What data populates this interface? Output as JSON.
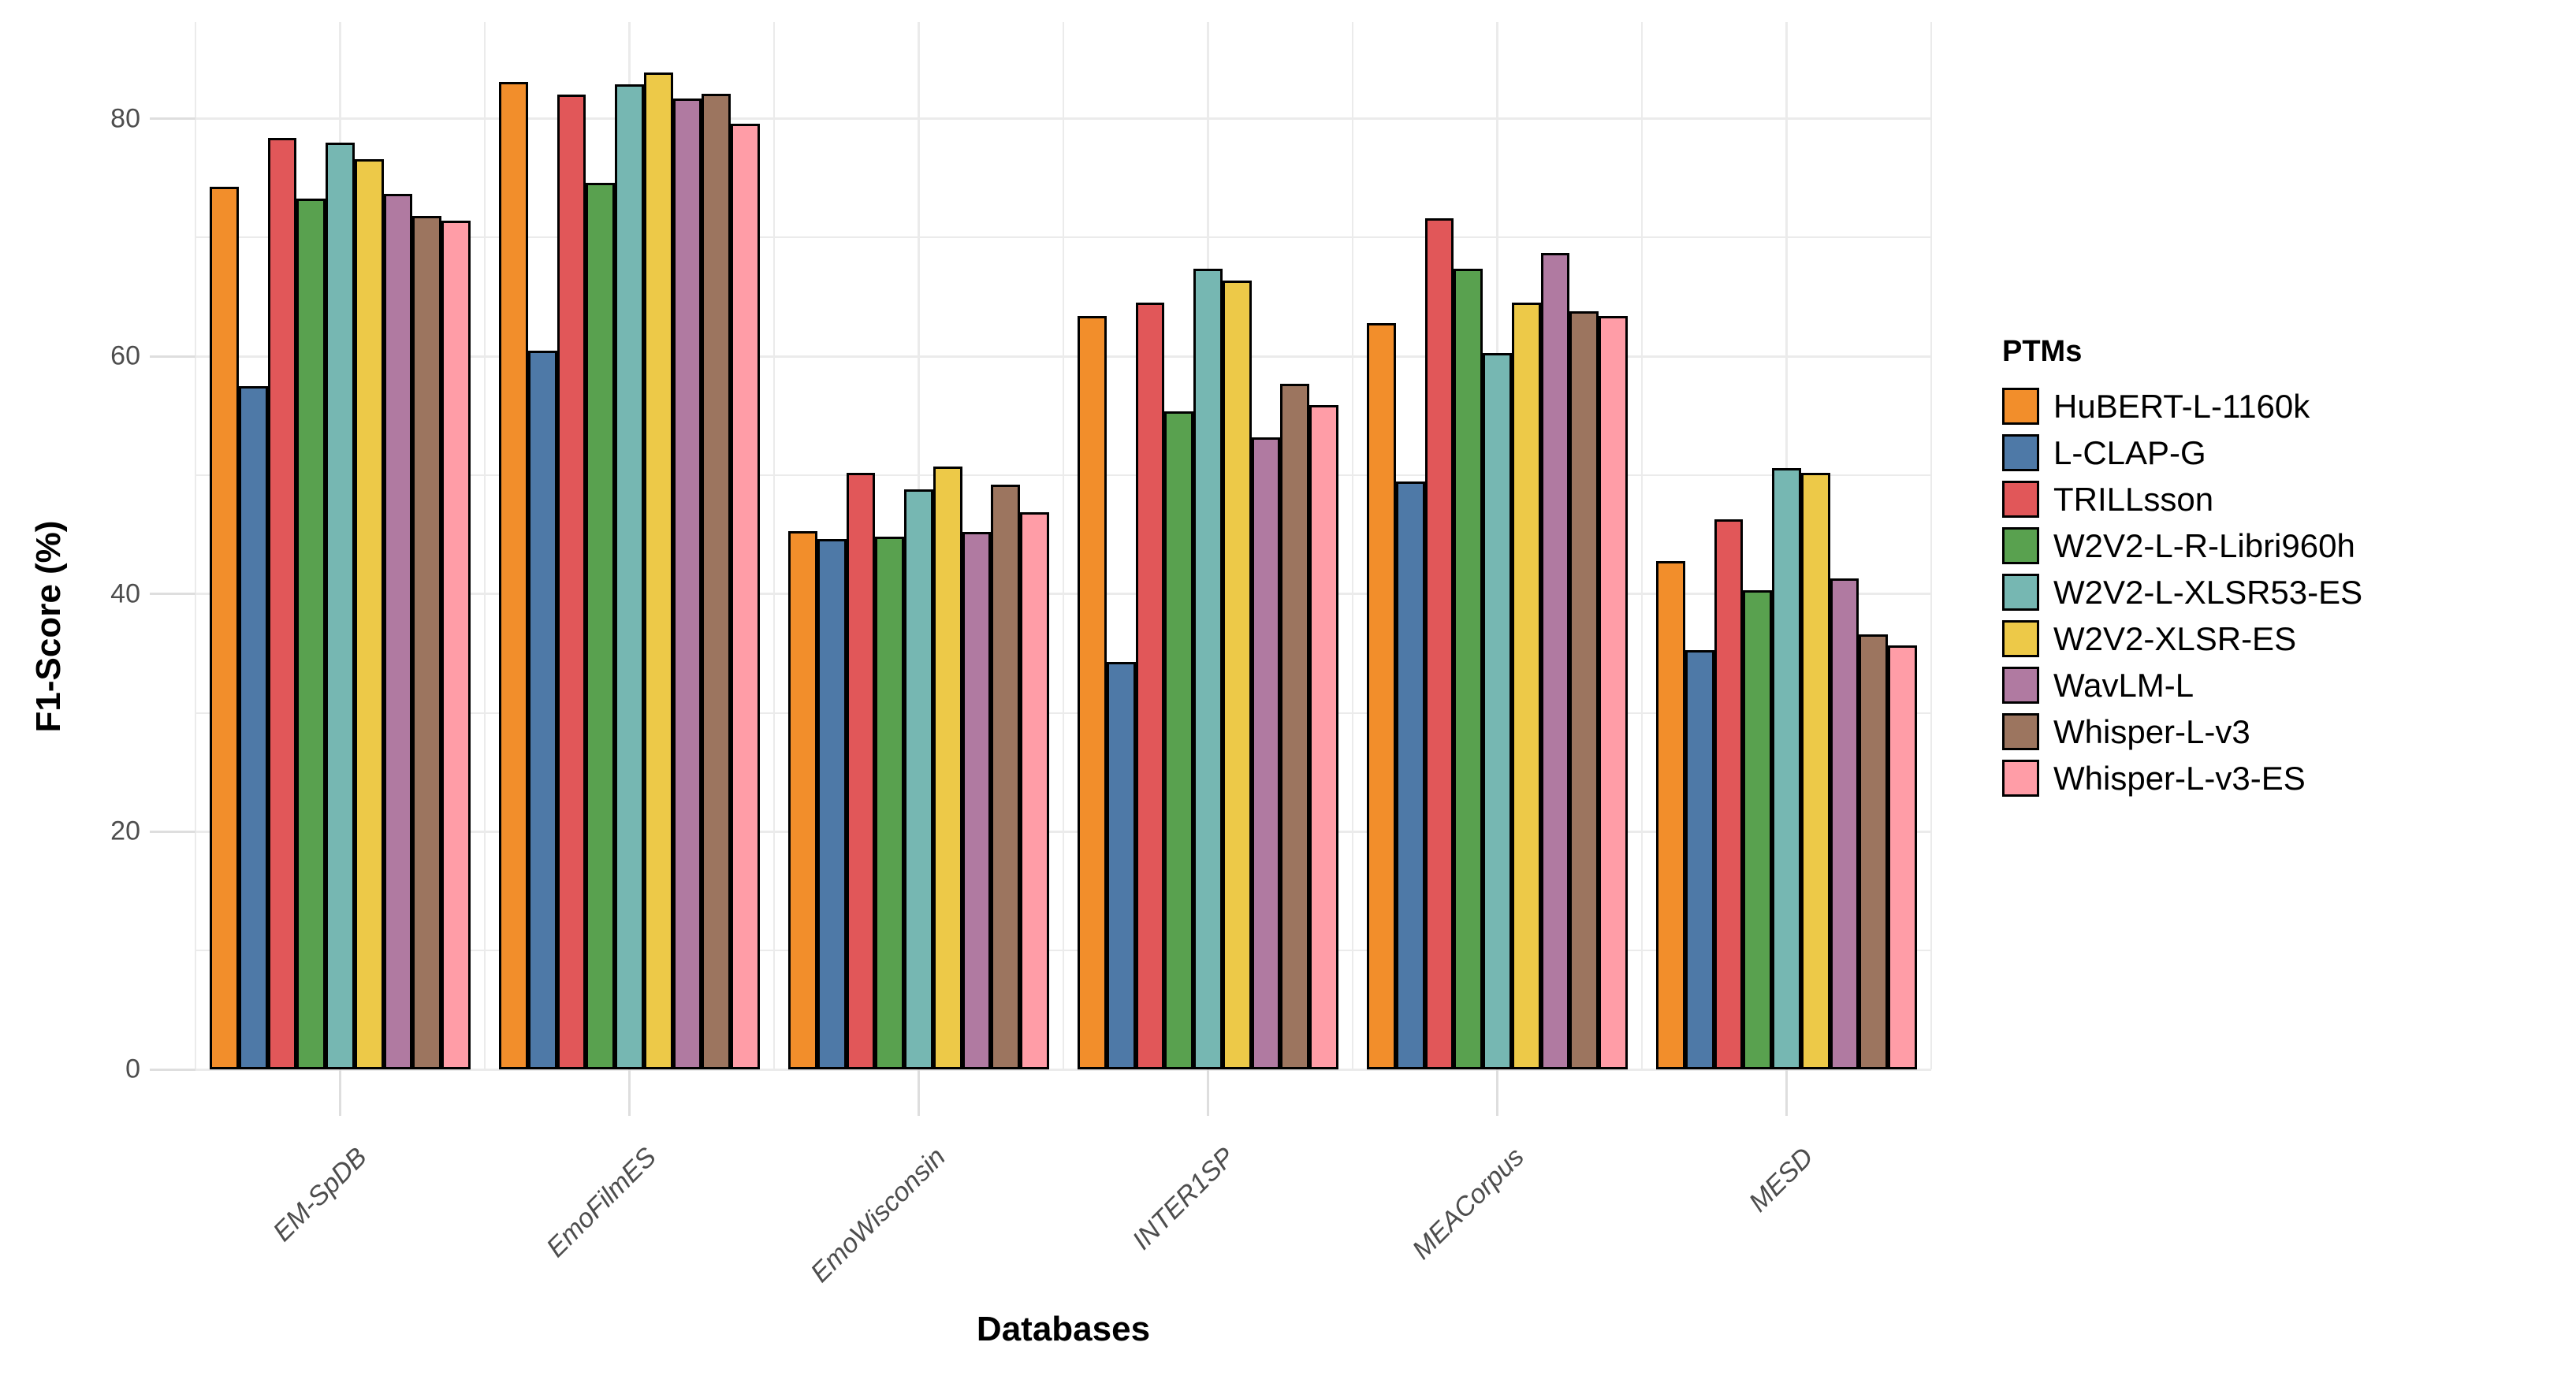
{
  "chart_data": {
    "type": "bar",
    "title": "",
    "xlabel": "Databases",
    "ylabel": "F1-Score (%)",
    "legend_title": "PTMs",
    "legend_position": "right",
    "grid": true,
    "ylim": [
      0,
      88
    ],
    "yticks": [
      0,
      20,
      40,
      60,
      80
    ],
    "categories": [
      "EM-SpDB",
      "EmoFilmES",
      "EmoWisconsin",
      "INTER1SP",
      "MEACorpus",
      "MESD"
    ],
    "series": [
      {
        "name": "HuBERT-L-1160k",
        "color": "#F28E2B",
        "values": [
          74.3,
          83.1,
          45.3,
          63.4,
          62.8,
          42.8
        ]
      },
      {
        "name": "L-CLAP-G",
        "color": "#4E79A7",
        "values": [
          57.5,
          60.5,
          44.6,
          34.3,
          49.5,
          35.3
        ]
      },
      {
        "name": "TRILLsson",
        "color": "#E15759",
        "values": [
          78.4,
          82.0,
          50.2,
          64.5,
          71.6,
          46.3
        ]
      },
      {
        "name": "W2V2-L-R-Libri960h",
        "color": "#59A14F",
        "values": [
          73.3,
          74.6,
          44.8,
          55.4,
          67.4,
          40.3
        ]
      },
      {
        "name": "W2V2-L-XLSR53-ES",
        "color": "#76B7B2",
        "values": [
          78.0,
          82.9,
          48.8,
          67.4,
          60.3,
          50.6
        ]
      },
      {
        "name": "W2V2-XLSR-ES",
        "color": "#EDC948",
        "values": [
          76.6,
          83.9,
          50.7,
          66.4,
          64.5,
          50.2
        ]
      },
      {
        "name": "WavLM-L",
        "color": "#B07AA1",
        "values": [
          73.7,
          81.7,
          45.2,
          53.2,
          68.7,
          41.3
        ]
      },
      {
        "name": "Whisper-L-v3",
        "color": "#9C755F",
        "values": [
          71.8,
          82.1,
          49.2,
          57.7,
          63.8,
          36.6
        ]
      },
      {
        "name": "Whisper-L-v3-ES",
        "color": "#FF9DA7",
        "values": [
          71.4,
          79.6,
          46.9,
          55.9,
          63.4,
          35.7
        ]
      }
    ],
    "axis_text_color": "#4D4D4D",
    "grid_color": "#EBEBEB",
    "bar_border_color": "#000000",
    "background": "#FFFFFF"
  }
}
